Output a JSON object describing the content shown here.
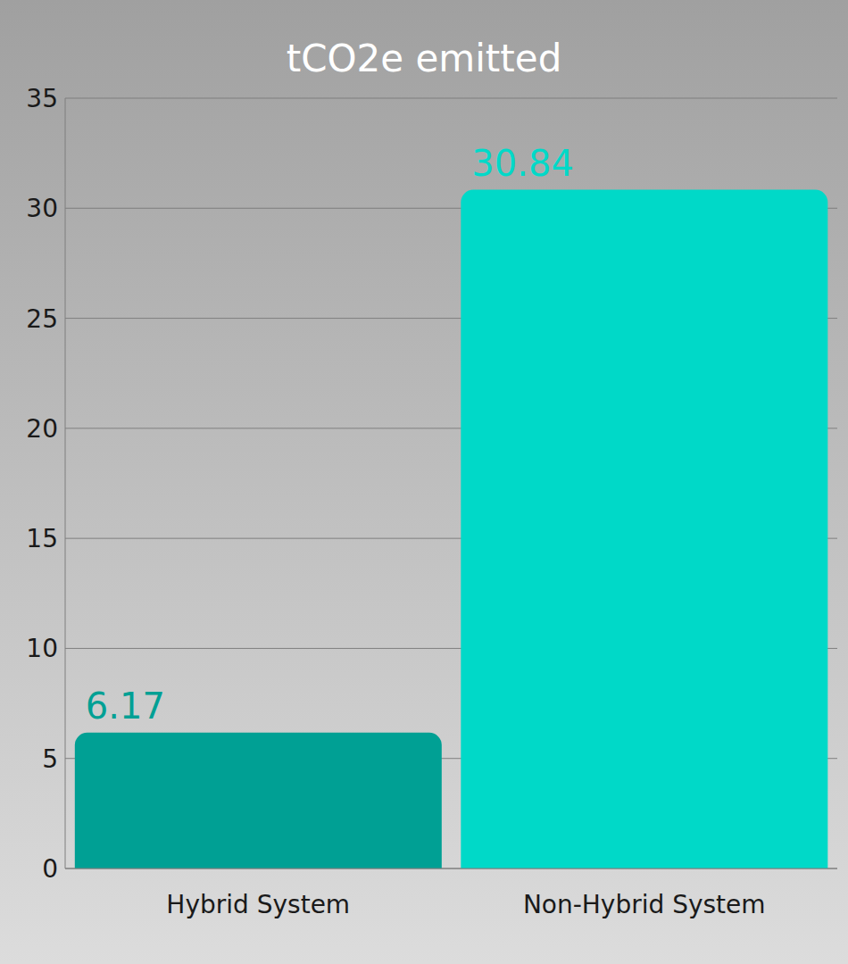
{
  "chart_data": {
    "type": "bar",
    "title": "tCO2e emitted",
    "categories": [
      "Hybrid System",
      "Non-Hybrid System"
    ],
    "values": [
      6.17,
      30.84
    ],
    "colors": [
      "#00a094",
      "#00d9c8"
    ],
    "ylim": [
      0,
      35
    ],
    "yticks": [
      0,
      5,
      10,
      15,
      20,
      25,
      30,
      35
    ],
    "grid": true,
    "data_labels": true
  }
}
